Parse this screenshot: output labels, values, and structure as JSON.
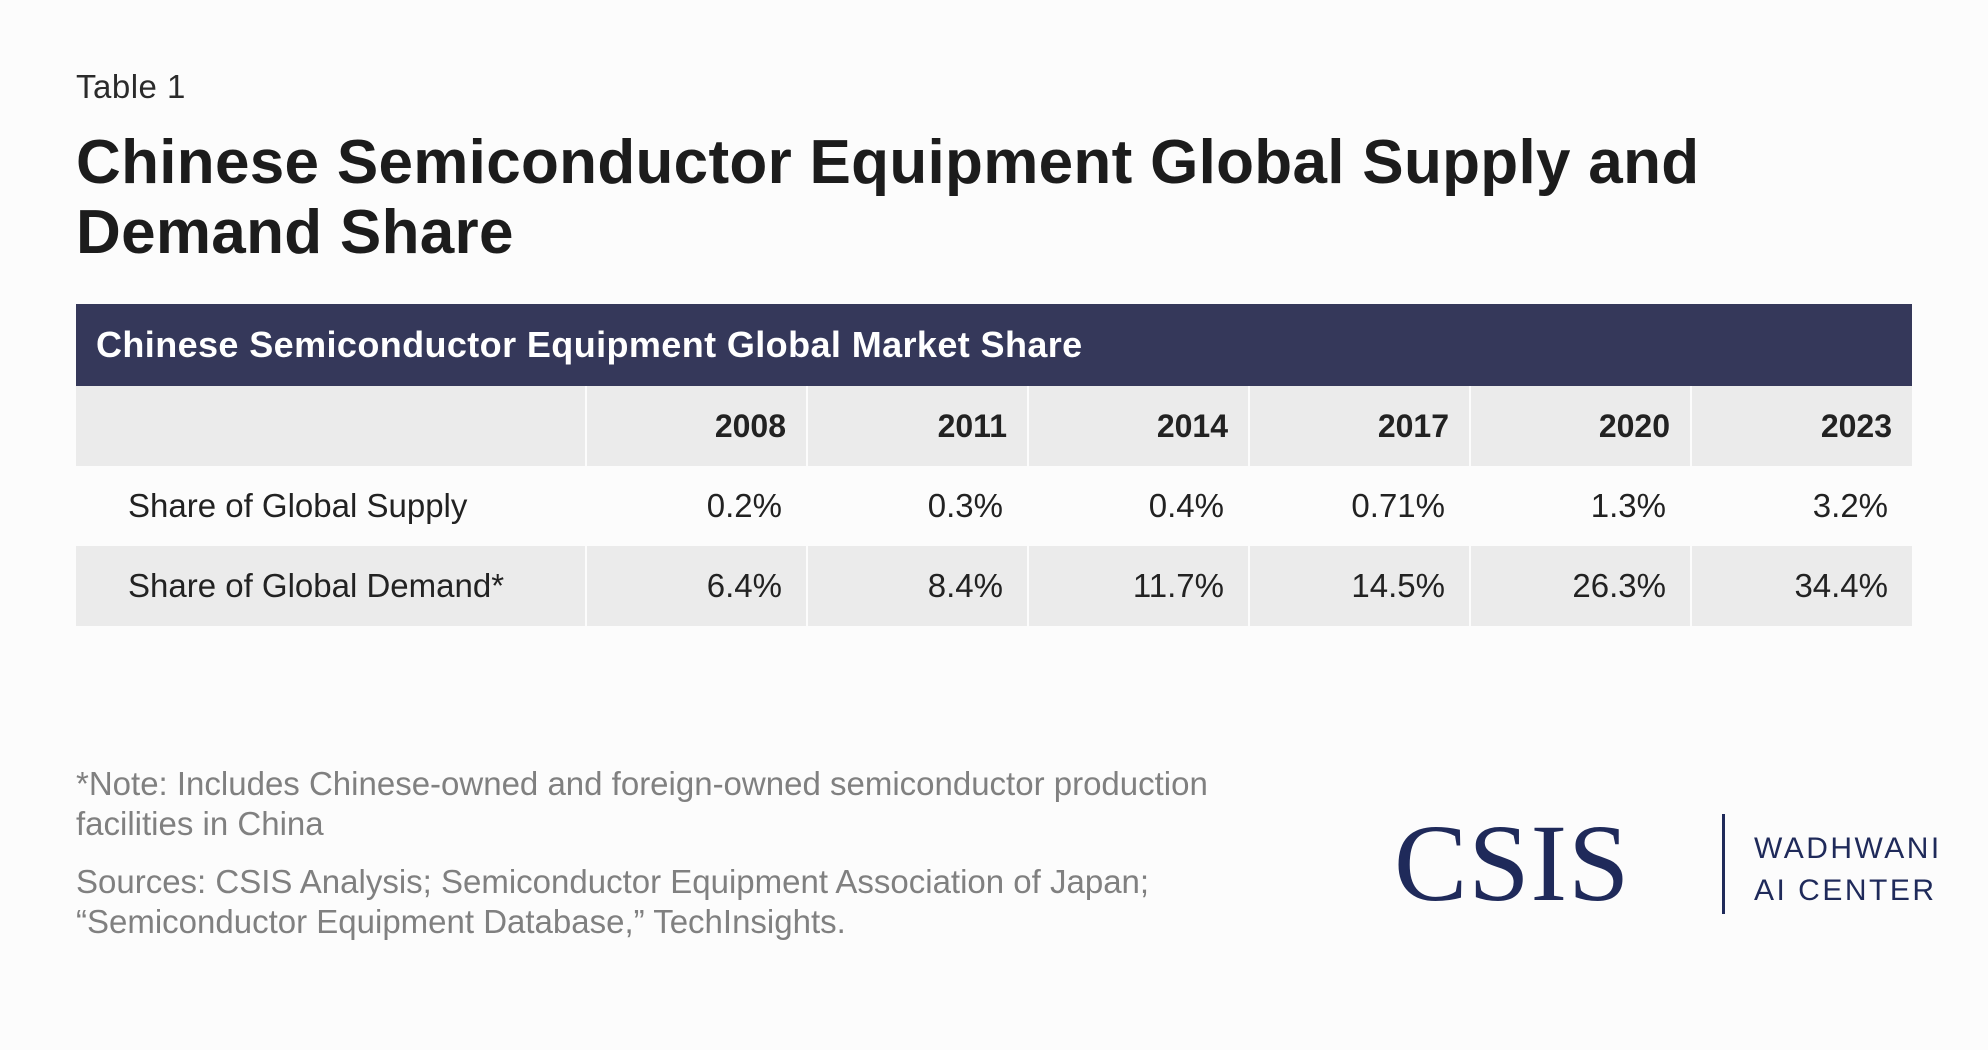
{
  "header": {
    "eyebrow": "Table 1",
    "title": "Chinese Semiconductor Equipment Global Supply and Demand Share"
  },
  "chart_data": {
    "type": "table",
    "table_title": "Chinese Semiconductor Equipment Global Market Share",
    "columns": [
      "",
      "2008",
      "2011",
      "2014",
      "2017",
      "2020",
      "2023"
    ],
    "rows": [
      {
        "label": "Share of Global Supply",
        "values": [
          "0.2%",
          "0.3%",
          "0.4%",
          "0.71%",
          "1.3%",
          "3.2%"
        ]
      },
      {
        "label": "Share of Global Demand*",
        "values": [
          "6.4%",
          "8.4%",
          "11.7%",
          "14.5%",
          "26.3%",
          "34.4%"
        ]
      }
    ]
  },
  "footer": {
    "note": "*Note: Includes Chinese-owned and foreign-owned semiconductor production facilities in China",
    "sources": "Sources: CSIS Analysis; Semiconductor Equipment Association of Japan; “Semiconductor Equipment Database,” TechInsights.",
    "logo": {
      "mark": "CSIS",
      "line1": "WADHWANI",
      "line2": "AI CENTER"
    }
  },
  "colors": {
    "banner": "#35385a",
    "stripe": "#ebebeb",
    "brand": "#1f2a5a",
    "muted_text": "#808080"
  }
}
